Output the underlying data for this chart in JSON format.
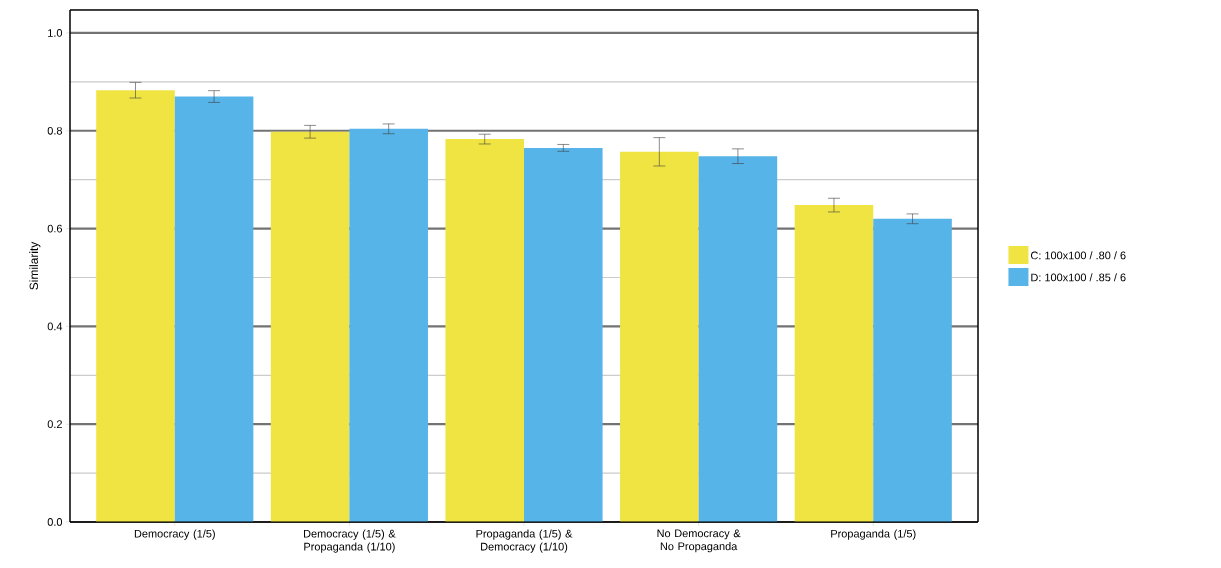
{
  "chart_data": {
    "type": "bar",
    "ylabel": "Similarity",
    "categories": [
      "Democracy (1/5)",
      "Democracy (1/5) & Propaganda (1/10)",
      "Propaganda (1/5) & Democracy (1/10)",
      "No Democracy & No Propaganda",
      "Propaganda (1/5)"
    ],
    "series": [
      {
        "name": "C: 100x100 / .80 / 6",
        "color": "#f0e442",
        "values": [
          0.883,
          0.798,
          0.783,
          0.757,
          0.648
        ],
        "errors": [
          0.016,
          0.013,
          0.01,
          0.029,
          0.014
        ]
      },
      {
        "name": "D: 100x100 / .85 / 6",
        "color": "#56b4e9",
        "values": [
          0.87,
          0.804,
          0.765,
          0.748,
          0.62
        ],
        "errors": [
          0.012,
          0.01,
          0.007,
          0.015,
          0.01
        ]
      }
    ],
    "ylim": [
      0,
      1.047
    ],
    "yticks": [
      {
        "value": 0,
        "label": "0.0"
      },
      0.2,
      0.4,
      0.6,
      0.8,
      {
        "value": 1,
        "label": "1.0"
      }
    ],
    "grid": "y",
    "legend": "right"
  }
}
